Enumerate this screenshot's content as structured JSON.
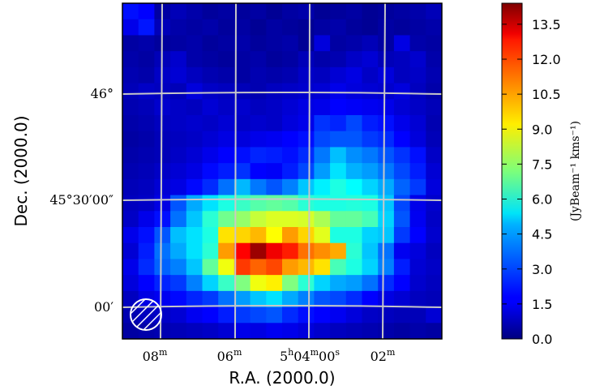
{
  "chart_data": {
    "type": "heatmap",
    "x_axis": {
      "label": "R.A. (2000.0)",
      "ticks": [
        {
          "main": "08",
          "sup": "m"
        },
        {
          "main": "06",
          "sup": "m"
        },
        {
          "main": "5",
          "sup": "h",
          "main2": "04",
          "sup2": "m",
          "main3": "00",
          "sup3": "s"
        },
        {
          "main": "02",
          "sup": "m"
        }
      ]
    },
    "y_axis": {
      "label": "Dec. (2000.0)",
      "ticks": [
        {
          "text": "46°"
        },
        {
          "text": "45°30′00″"
        },
        {
          "text": "00′"
        }
      ]
    },
    "colorbar": {
      "label": "(JyBeam⁻¹ kms⁻¹)",
      "range": [
        0,
        14.4
      ],
      "ticks": [
        "0.0",
        "1.5",
        "3.0",
        "4.5",
        "6.0",
        "7.5",
        "9.0",
        "10.5",
        "12.0",
        "13.5"
      ]
    },
    "grid": true,
    "beam_marker": "hatched circle, bottom-left",
    "colormap": "jet",
    "n_cols": 20,
    "n_rows": 21,
    "values": [
      [
        2.0,
        1.8,
        0.5,
        0.8,
        0.6,
        0.4,
        0.5,
        0.4,
        0.5,
        0.3,
        0.5,
        0.6,
        0.3,
        0.4,
        0.5,
        0.3,
        0.4,
        0.5,
        0.6,
        0.8
      ],
      [
        1.5,
        2.1,
        0.8,
        0.6,
        0.5,
        0.6,
        0.4,
        0.5,
        0.3,
        0.5,
        0.4,
        0.3,
        0.5,
        0.6,
        0.4,
        0.3,
        0.5,
        0.4,
        0.5,
        0.6
      ],
      [
        0.5,
        0.6,
        0.4,
        0.5,
        0.6,
        0.4,
        0.5,
        0.6,
        0.4,
        0.5,
        0.6,
        0.3,
        1.3,
        0.5,
        0.6,
        0.8,
        0.5,
        1.4,
        0.6,
        0.5
      ],
      [
        0.6,
        0.5,
        0.8,
        1.1,
        0.6,
        0.5,
        0.4,
        0.5,
        0.6,
        0.4,
        0.5,
        0.8,
        0.6,
        0.7,
        1.0,
        1.2,
        0.8,
        0.9,
        1.1,
        0.6
      ],
      [
        0.7,
        0.6,
        1.0,
        1.2,
        0.9,
        0.7,
        0.6,
        0.5,
        0.7,
        0.6,
        0.7,
        1.0,
        0.9,
        1.2,
        1.4,
        1.0,
        1.3,
        0.9,
        1.0,
        0.7
      ],
      [
        0.8,
        1.0,
        0.9,
        0.8,
        1.3,
        1.0,
        0.9,
        0.8,
        0.7,
        0.9,
        1.0,
        1.1,
        1.2,
        1.5,
        1.3,
        1.2,
        1.1,
        1.3,
        0.9,
        0.6
      ],
      [
        0.7,
        0.8,
        1.1,
        1.0,
        0.9,
        1.2,
        1.0,
        1.1,
        0.9,
        1.0,
        1.2,
        1.4,
        1.5,
        1.8,
        1.7,
        1.6,
        1.5,
        1.2,
        1.0,
        0.8
      ],
      [
        0.6,
        0.7,
        0.9,
        1.0,
        1.1,
        1.0,
        1.2,
        1.0,
        1.1,
        1.0,
        1.3,
        1.5,
        2.5,
        2.3,
        2.8,
        2.2,
        2.0,
        1.5,
        1.2,
        0.7
      ],
      [
        0.5,
        0.6,
        0.8,
        0.9,
        1.0,
        1.2,
        1.4,
        1.3,
        1.5,
        1.6,
        1.8,
        2.0,
        2.8,
        3.0,
        3.0,
        2.6,
        2.4,
        1.8,
        1.3,
        0.8
      ],
      [
        0.6,
        0.7,
        0.8,
        1.0,
        1.2,
        1.5,
        1.8,
        2.0,
        2.3,
        2.2,
        2.0,
        2.4,
        3.5,
        4.5,
        3.8,
        3.5,
        3.0,
        2.5,
        2.0,
        1.0
      ],
      [
        0.7,
        0.8,
        1.0,
        1.2,
        1.4,
        1.9,
        2.2,
        2.5,
        1.8,
        1.7,
        2.2,
        2.8,
        4.0,
        5.0,
        4.3,
        4.0,
        3.5,
        2.8,
        2.2,
        1.2
      ],
      [
        0.8,
        0.9,
        1.2,
        1.4,
        1.9,
        2.4,
        3.4,
        4.4,
        3.5,
        3.0,
        3.6,
        4.6,
        5.2,
        5.8,
        5.4,
        4.8,
        4.2,
        3.2,
        2.6,
        1.3
      ],
      [
        0.9,
        1.0,
        1.4,
        3.0,
        4.2,
        5.0,
        5.8,
        6.2,
        6.6,
        6.8,
        6.6,
        6.0,
        5.8,
        5.8,
        5.9,
        5.8,
        4.6,
        2.8,
        1.5,
        1.1
      ],
      [
        1.0,
        1.5,
        2.0,
        3.4,
        4.6,
        6.0,
        7.0,
        7.5,
        8.2,
        8.5,
        8.5,
        8.4,
        7.8,
        6.8,
        6.8,
        6.4,
        4.8,
        3.0,
        1.6,
        1.0
      ],
      [
        1.5,
        2.0,
        3.0,
        4.5,
        5.0,
        5.8,
        9.4,
        9.6,
        10.0,
        9.0,
        10.4,
        9.6,
        8.6,
        5.8,
        5.8,
        4.8,
        4.6,
        2.6,
        1.8,
        1.1
      ],
      [
        1.2,
        2.2,
        3.4,
        4.2,
        5.0,
        6.0,
        10.4,
        12.6,
        14.0,
        12.8,
        12.2,
        11.0,
        10.6,
        10.2,
        6.0,
        4.6,
        3.4,
        1.6,
        1.3,
        0.9
      ],
      [
        1.5,
        2.4,
        3.2,
        3.6,
        4.6,
        6.8,
        8.8,
        11.8,
        11.2,
        11.6,
        10.4,
        10.0,
        9.4,
        6.4,
        5.8,
        4.8,
        3.6,
        2.2,
        1.2,
        1.0
      ],
      [
        1.3,
        1.8,
        2.3,
        2.6,
        3.6,
        4.8,
        6.2,
        7.2,
        8.8,
        9.2,
        7.2,
        6.0,
        4.8,
        4.2,
        4.0,
        3.4,
        2.4,
        1.8,
        1.1,
        0.9
      ],
      [
        0.9,
        1.4,
        1.6,
        1.9,
        2.3,
        2.6,
        3.4,
        4.0,
        4.6,
        5.0,
        4.2,
        3.6,
        3.0,
        2.8,
        2.4,
        1.8,
        1.4,
        1.2,
        0.9,
        0.8
      ],
      [
        0.7,
        0.9,
        1.0,
        1.2,
        1.6,
        1.8,
        2.2,
        2.6,
        2.8,
        3.0,
        2.4,
        2.0,
        1.8,
        1.6,
        1.3,
        1.0,
        0.9,
        0.8,
        0.8,
        1.2
      ],
      [
        0.5,
        0.6,
        0.7,
        0.8,
        0.9,
        1.0,
        1.2,
        1.5,
        1.4,
        1.6,
        1.5,
        1.3,
        1.1,
        0.9,
        0.8,
        0.7,
        0.6,
        0.5,
        0.6,
        0.5
      ]
    ]
  }
}
